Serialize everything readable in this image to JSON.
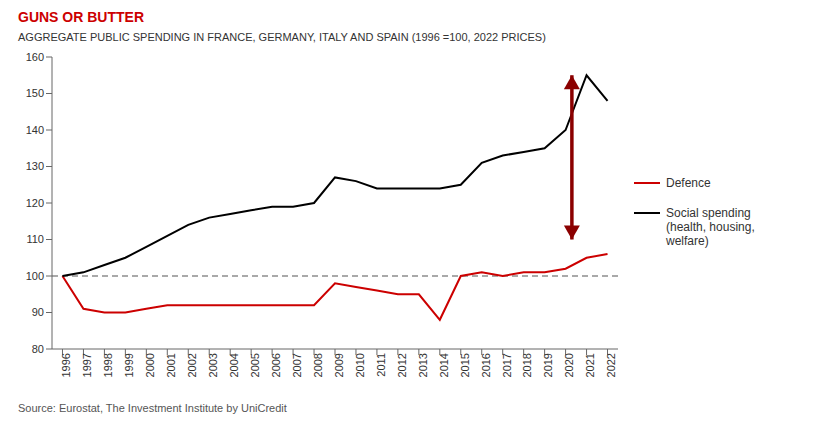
{
  "chart_data": {
    "type": "line",
    "title": "GUNS OR BUTTER",
    "title_color": "#cc0000",
    "subtitle": "AGGREGATE PUBLIC SPENDING IN FRANCE, GERMANY, ITALY AND SPAIN (1996 =100, 2022 PRICES)",
    "source": "Source: Eurostat, The Investment Institute by UniCredit",
    "x": [
      1996,
      1997,
      1998,
      1999,
      2000,
      2001,
      2002,
      2003,
      2004,
      2005,
      2006,
      2007,
      2008,
      2009,
      2010,
      2011,
      2012,
      2013,
      2014,
      2015,
      2016,
      2017,
      2018,
      2019,
      2020,
      2021,
      2022
    ],
    "series": [
      {
        "name": "Defence",
        "color": "#cc0000",
        "values": [
          100,
          91,
          90,
          90,
          91,
          92,
          92,
          92,
          92,
          92,
          92,
          92,
          92,
          98,
          97,
          96,
          95,
          95,
          88,
          100,
          101,
          100,
          101,
          101,
          102,
          105,
          106
        ]
      },
      {
        "name": "Social spending\n(health, housing,\nwelfare)",
        "color": "#000000",
        "values": [
          100,
          101,
          103,
          105,
          108,
          111,
          114,
          116,
          117,
          118,
          119,
          119,
          120,
          127,
          126,
          124,
          124,
          124,
          124,
          125,
          131,
          133,
          134,
          135,
          140,
          155,
          148
        ]
      }
    ],
    "xlim": [
      1995.5,
      2022.5
    ],
    "xticks": [
      1996,
      1997,
      1998,
      1999,
      2000,
      2001,
      2002,
      2003,
      2004,
      2005,
      2006,
      2007,
      2008,
      2009,
      2010,
      2011,
      2012,
      2013,
      2014,
      2015,
      2016,
      2017,
      2018,
      2019,
      2020,
      2021,
      2022
    ],
    "ylim": [
      80,
      160
    ],
    "yticks": [
      80,
      90,
      100,
      110,
      120,
      130,
      140,
      150,
      160
    ],
    "reference_lines": [
      {
        "y": 100,
        "color": "#555555",
        "line_style": "dashed"
      }
    ],
    "arrows": [
      {
        "x": 2020.3,
        "y_from": 155,
        "y_to": 110,
        "color": "#8b0000"
      }
    ],
    "grid": false,
    "legend": "right"
  }
}
